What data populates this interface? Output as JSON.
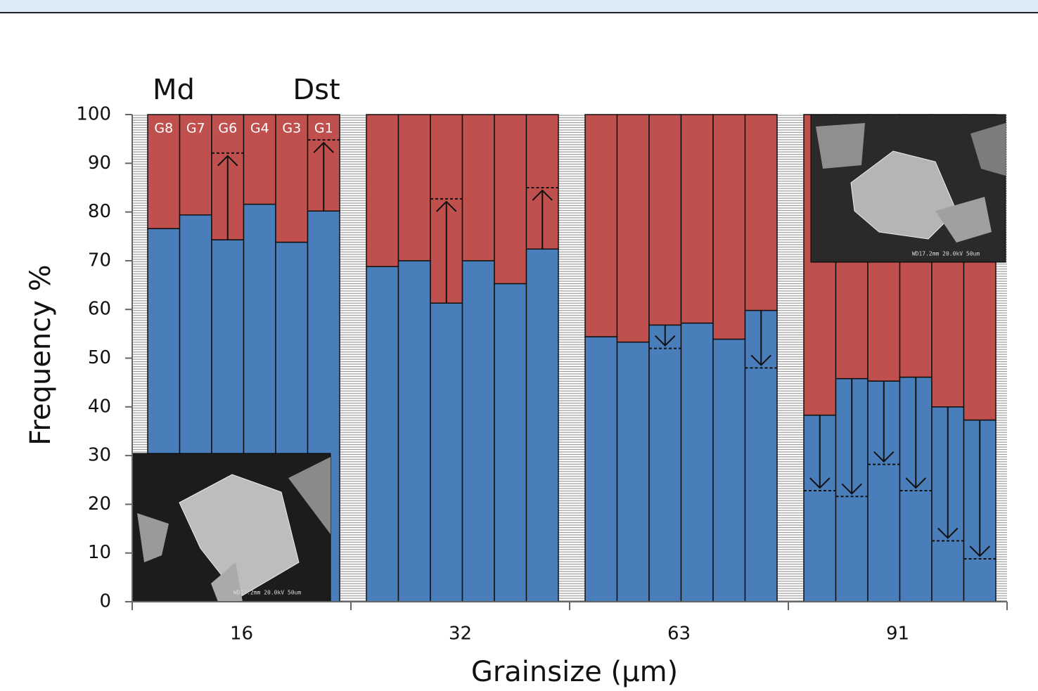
{
  "chart_data": {
    "type": "bar",
    "stacked": true,
    "x_label": "Grainsize (μm)",
    "y_label": "Frequency %",
    "categories": [
      "16",
      "32",
      "63",
      "91"
    ],
    "bar_labels": [
      "G8",
      "G7",
      "G6",
      "G4",
      "G3",
      "G1"
    ],
    "annotations": [
      "Md",
      "Dst"
    ],
    "series": [
      {
        "color": "#4a7ebb",
        "values": [
          [
            76.6,
            79.4,
            74.3,
            81.6,
            73.8,
            80.2
          ],
          [
            68.8,
            70,
            61.3,
            70,
            65.3,
            72.4
          ],
          [
            54.4,
            53.3,
            56.8,
            57.2,
            53.9,
            59.8
          ],
          [
            38.3,
            45.8,
            45.3,
            46.1,
            40,
            37.3
          ]
        ]
      },
      {
        "color": "#c0504d",
        "values": [
          [
            23.4,
            20.6,
            25.7,
            18.4,
            26.2,
            19.8
          ],
          [
            31.2,
            30,
            38.7,
            30,
            34.7,
            27.6
          ],
          [
            45.6,
            46.7,
            43.2,
            42.8,
            46.1,
            40.2
          ],
          [
            61.7,
            54.2,
            54.7,
            53.9,
            60,
            62.7
          ]
        ]
      }
    ],
    "targets": [
      [
        null,
        null,
        92.1,
        null,
        null,
        94.8
      ],
      [
        null,
        null,
        82.7,
        null,
        null,
        85
      ],
      [
        null,
        null,
        52,
        null,
        null,
        48
      ],
      [
        22.8,
        21.6,
        28.2,
        22.8,
        12.5,
        8.8
      ]
    ],
    "ylim": [
      0,
      100
    ],
    "yticks": [
      0,
      10,
      20,
      30,
      40,
      50,
      60,
      70,
      80,
      90,
      100
    ],
    "insets": [
      {
        "caption": "WD17.2mm 20.0kV 50um"
      },
      {
        "caption": "WD17.2mm 20.0kV 50um"
      }
    ]
  }
}
